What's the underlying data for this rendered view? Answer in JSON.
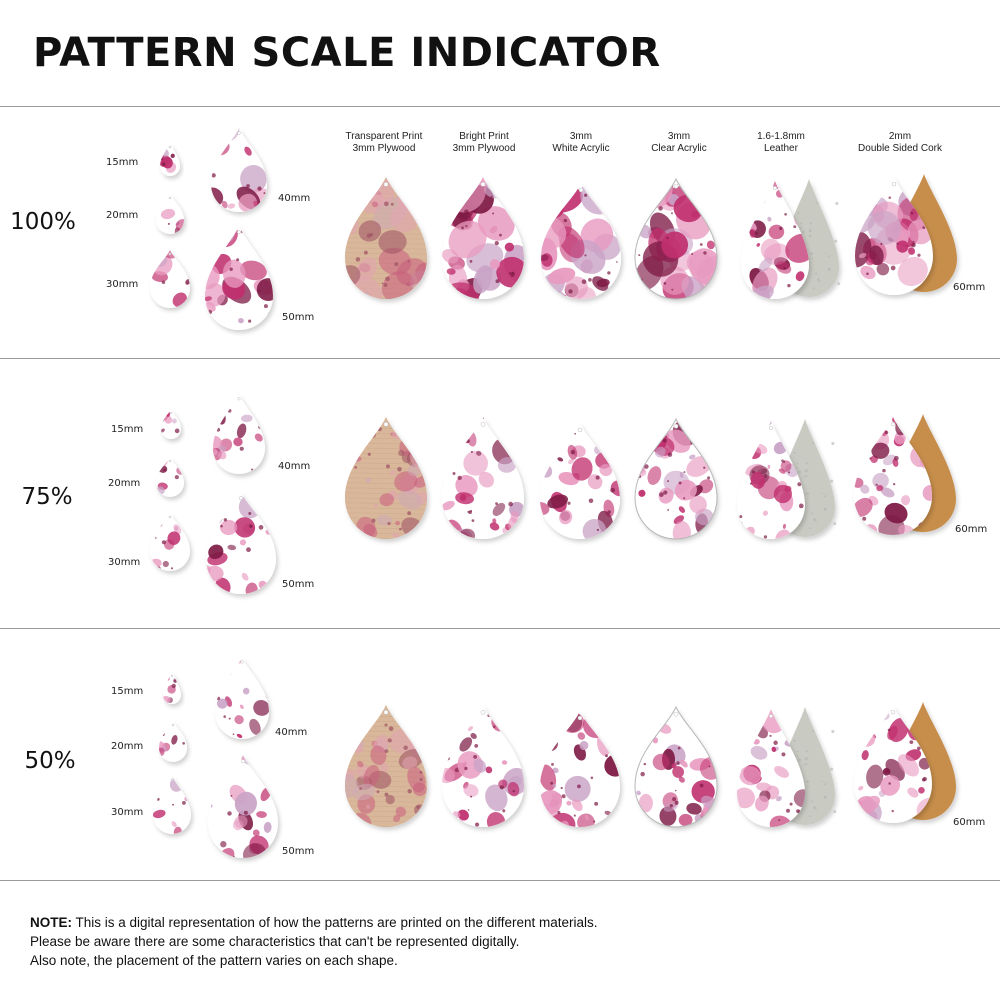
{
  "title": "PATTERN SCALE INDICATOR",
  "materials": [
    {
      "line1": "Transparent Print",
      "line2": "3mm Plywood"
    },
    {
      "line1": "Bright Print",
      "line2": "3mm Plywood"
    },
    {
      "line1": "3mm",
      "line2": "White Acrylic"
    },
    {
      "line1": "3mm",
      "line2": "Clear Acrylic"
    },
    {
      "line1": "1.6-1.8mm",
      "line2": "Leather"
    },
    {
      "line1": "2mm",
      "line2": "Double Sided Cork"
    }
  ],
  "rows": [
    {
      "scale": "100%",
      "sizes": [
        "15mm",
        "20mm",
        "30mm",
        "40mm",
        "50mm",
        "60mm"
      ]
    },
    {
      "scale": "75%",
      "sizes": [
        "15mm",
        "20mm",
        "30mm",
        "40mm",
        "50mm",
        "60mm"
      ]
    },
    {
      "scale": "50%",
      "sizes": [
        "15mm",
        "20mm",
        "30mm",
        "40mm",
        "50mm",
        "60mm"
      ]
    }
  ],
  "note": {
    "label": "NOTE:",
    "line1": "This is a digital representation of how the patterns are printed on the different materials.",
    "line2": "Please be aware there are some characteristics that can't be represented digitally.",
    "line3": "Also note, the placement of the pattern varies on each shape."
  },
  "colors": {
    "magenta": "#c0306e",
    "deep": "#7e1a45",
    "pink": "#e89ac0",
    "lilac": "#c9a3c6",
    "plywood": "#d9b79a",
    "leather_back": "#c9cbc3",
    "cork": "#c78e4c"
  }
}
